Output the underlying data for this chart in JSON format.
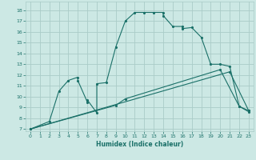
{
  "bg_color": "#cce8e4",
  "grid_color": "#aaccc8",
  "line_color": "#1a7068",
  "xlabel": "Humidex (Indice chaleur)",
  "xlim": [
    -0.5,
    23.5
  ],
  "ylim": [
    6.8,
    18.8
  ],
  "yticks": [
    7,
    8,
    9,
    10,
    11,
    12,
    13,
    14,
    15,
    16,
    17,
    18
  ],
  "xticks": [
    0,
    1,
    2,
    3,
    4,
    5,
    6,
    7,
    8,
    9,
    10,
    11,
    12,
    13,
    14,
    15,
    16,
    17,
    18,
    19,
    20,
    21,
    22,
    23
  ],
  "line1_x": [
    0,
    2,
    3,
    4,
    5,
    5,
    6,
    6,
    7,
    7,
    8,
    9,
    10,
    11,
    12,
    13,
    14,
    14,
    15,
    16,
    16,
    17,
    18,
    19,
    20,
    21,
    22,
    23
  ],
  "line1_y": [
    7,
    7.7,
    10.5,
    11.5,
    11.8,
    11.5,
    9.5,
    9.7,
    8.5,
    11.2,
    11.3,
    14.6,
    17.0,
    17.8,
    17.8,
    17.8,
    17.8,
    17.5,
    16.5,
    16.5,
    16.3,
    16.4,
    15.5,
    13.0,
    13.0,
    12.8,
    9.1,
    8.6
  ],
  "line2_x": [
    0,
    21,
    23
  ],
  "line2_y": [
    7,
    12.3,
    8.7
  ],
  "line3_x": [
    0,
    9,
    10,
    20,
    22,
    23
  ],
  "line3_y": [
    7,
    9.2,
    9.8,
    12.5,
    9.1,
    8.7
  ]
}
